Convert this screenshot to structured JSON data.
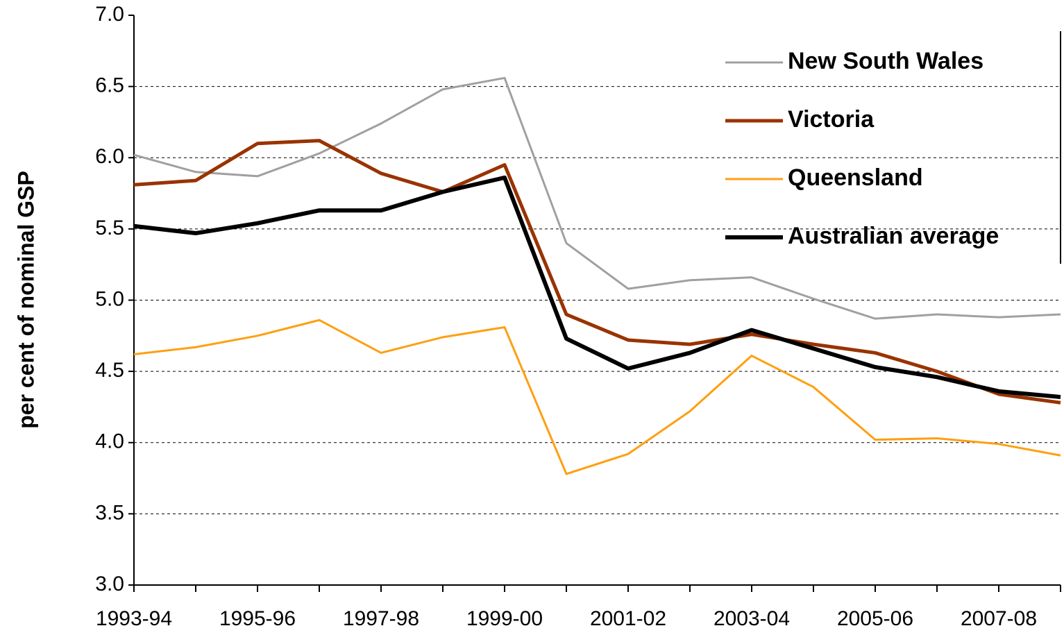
{
  "chart_data": {
    "type": "line",
    "y_label": "per cent of nominal GSP",
    "categories": [
      "1993-94",
      null,
      "1995-96",
      null,
      "1997-98",
      null,
      "1999-00",
      null,
      "2001-02",
      null,
      "2003-04",
      null,
      "2005-06",
      null,
      "2007-08",
      null
    ],
    "series": [
      {
        "name": "New South Wales",
        "color": "#a0a0a0",
        "values": [
          6.02,
          5.9,
          5.87,
          6.03,
          6.24,
          6.48,
          6.56,
          5.4,
          5.08,
          5.14,
          5.16,
          5.01,
          4.87,
          4.9,
          4.88,
          4.9
        ]
      },
      {
        "name": "Victoria",
        "color": "#993300",
        "values": [
          5.81,
          5.84,
          6.1,
          6.12,
          5.89,
          5.76,
          5.95,
          4.9,
          4.72,
          4.69,
          4.76,
          4.69,
          4.63,
          4.5,
          4.34,
          4.28
        ]
      },
      {
        "name": "Queensland",
        "color": "#ff9f10",
        "values": [
          4.62,
          4.67,
          4.75,
          4.86,
          4.63,
          4.74,
          4.81,
          3.78,
          3.92,
          4.22,
          4.61,
          4.39,
          4.02,
          4.03,
          3.99,
          3.91
        ]
      },
      {
        "name": "Australian average",
        "color": "#000000",
        "values": [
          5.52,
          5.47,
          5.54,
          5.63,
          5.63,
          5.76,
          5.86,
          4.73,
          4.52,
          4.63,
          4.79,
          4.66,
          4.53,
          4.46,
          4.36,
          4.32
        ]
      }
    ],
    "ylim": [
      3,
      7
    ],
    "yticks": [
      {
        "value": 3,
        "label": "3.0"
      },
      3.5,
      {
        "value": 4,
        "label": "4.0"
      },
      4.5,
      {
        "value": 5,
        "label": "5.0"
      },
      5.5,
      {
        "value": 6,
        "label": "6.0"
      },
      6.5,
      {
        "value": 7,
        "label": "7.0"
      }
    ],
    "grid": true,
    "legend": "top-right"
  }
}
